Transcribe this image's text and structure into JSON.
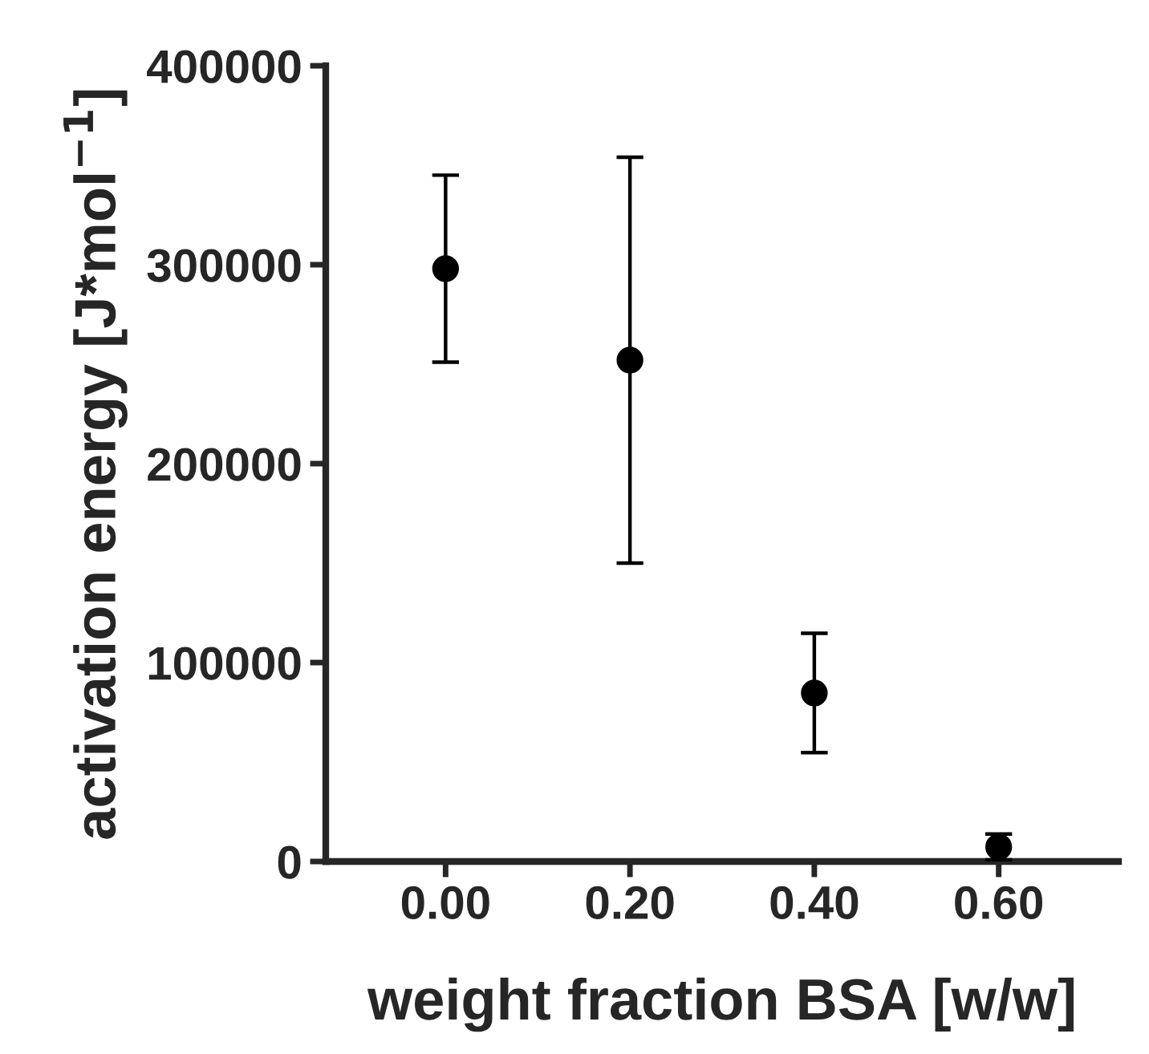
{
  "chart_data": {
    "type": "scatter",
    "xlabel": "weight fraction BSA [w/w]",
    "ylabel": "activation energy [J*mol$^{−1}$]",
    "x": [
      0.0,
      0.2,
      0.4,
      0.6
    ],
    "series": [
      {
        "color": "#000000",
        "values": [
          298000,
          252000,
          84700,
          7300
        ],
        "errors": [
          47000,
          102000,
          30000,
          6500
        ]
      }
    ],
    "xlim": [
      -0.13,
      0.73
    ],
    "xticks": [
      {
        "value": 0.0,
        "label": "0.00"
      },
      {
        "value": 0.2,
        "label": "0.20"
      },
      {
        "value": 0.4,
        "label": "0.40"
      },
      {
        "value": 0.6,
        "label": "0.60"
      }
    ],
    "ylim": [
      0,
      400000
    ],
    "yticks": [
      0,
      100000,
      200000,
      300000,
      400000
    ],
    "marker": "circle",
    "grid": false,
    "legend": false
  }
}
